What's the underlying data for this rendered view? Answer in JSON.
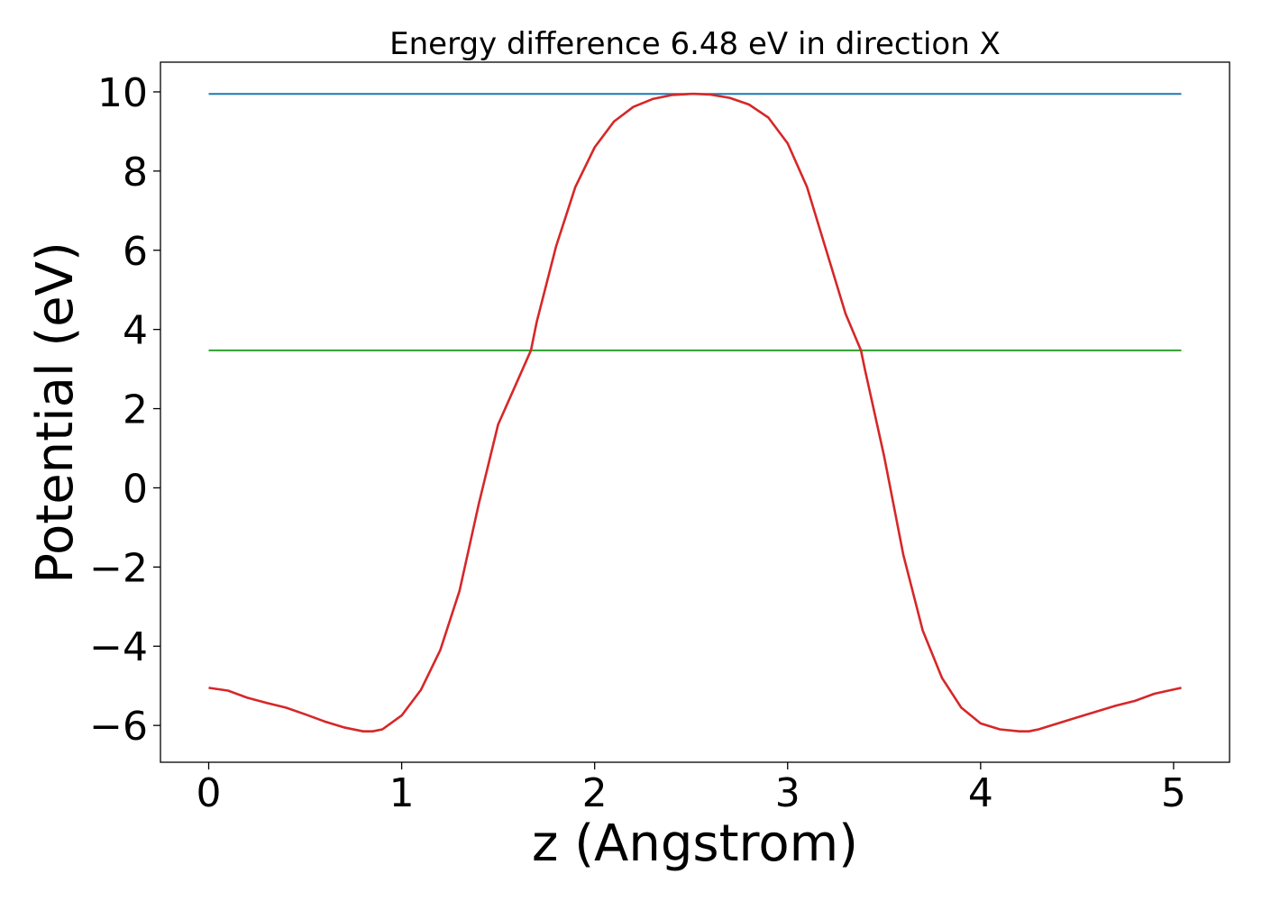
{
  "chart_data": {
    "type": "line",
    "title": "Energy difference 6.48 eV in direction X",
    "xlabel": "z (Angstrom)",
    "ylabel": "Potential (eV)",
    "xlim": [
      -0.25,
      5.29
    ],
    "ylim": [
      -6.93,
      10.75
    ],
    "xticks": [
      0,
      1,
      2,
      3,
      4,
      5
    ],
    "xtick_labels": [
      "0",
      "1",
      "2",
      "3",
      "4",
      "5"
    ],
    "yticks": [
      -6,
      -4,
      -2,
      0,
      2,
      4,
      6,
      8,
      10
    ],
    "ytick_labels": [
      "−6",
      "−4",
      "−2",
      "0",
      "2",
      "4",
      "6",
      "8",
      "10"
    ],
    "grid": false,
    "series": [
      {
        "color": "#1f77b4",
        "x": [
          0,
          5.04
        ],
        "y": [
          9.95,
          9.95
        ]
      },
      {
        "color": "#2ca02c",
        "x": [
          0,
          5.04
        ],
        "y": [
          3.47,
          3.47
        ]
      },
      {
        "color": "#d62728",
        "x": [
          0,
          0.1,
          0.2,
          0.3,
          0.4,
          0.5,
          0.6,
          0.7,
          0.8,
          0.85,
          0.9,
          1.0,
          1.1,
          1.2,
          1.3,
          1.4,
          1.5,
          1.6,
          1.67,
          1.7,
          1.8,
          1.9,
          2.0,
          2.1,
          2.2,
          2.3,
          2.4,
          2.5,
          2.52,
          2.6,
          2.7,
          2.8,
          2.9,
          3.0,
          3.1,
          3.2,
          3.3,
          3.38,
          3.4,
          3.5,
          3.6,
          3.7,
          3.8,
          3.9,
          4.0,
          4.1,
          4.2,
          4.25,
          4.3,
          4.4,
          4.5,
          4.6,
          4.7,
          4.8,
          4.9,
          5.04
        ],
        "y": [
          -5.05,
          -5.12,
          -5.3,
          -5.43,
          -5.55,
          -5.72,
          -5.9,
          -6.05,
          -6.15,
          -6.15,
          -6.1,
          -5.75,
          -5.1,
          -4.1,
          -2.6,
          -0.4,
          1.6,
          2.7,
          3.47,
          4.2,
          6.1,
          7.6,
          8.6,
          9.25,
          9.62,
          9.82,
          9.92,
          9.95,
          9.95,
          9.93,
          9.85,
          9.68,
          9.35,
          8.7,
          7.6,
          6.0,
          4.4,
          3.47,
          3.0,
          0.8,
          -1.7,
          -3.6,
          -4.8,
          -5.55,
          -5.95,
          -6.1,
          -6.15,
          -6.15,
          -6.1,
          -5.95,
          -5.8,
          -5.65,
          -5.5,
          -5.38,
          -5.2,
          -5.05
        ]
      }
    ]
  }
}
